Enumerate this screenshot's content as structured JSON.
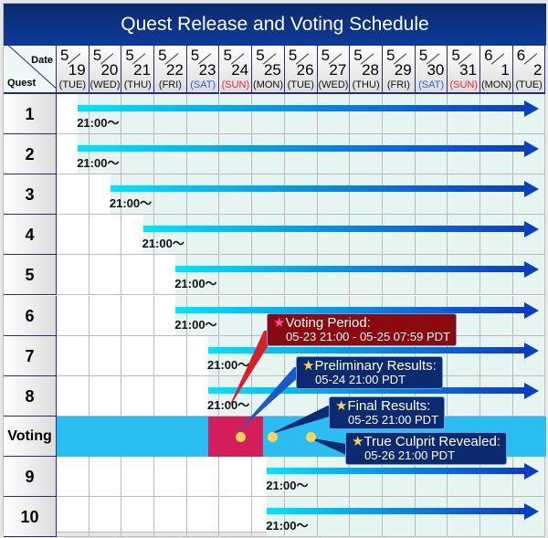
{
  "title": "Quest Release and Voting Schedule",
  "corner": {
    "date": "Date",
    "quest": "Quest"
  },
  "days": [
    {
      "m": "5",
      "d": "19",
      "w": "(TUE)",
      "c": "#111"
    },
    {
      "m": "5",
      "d": "20",
      "w": "(WED)",
      "c": "#111"
    },
    {
      "m": "5",
      "d": "21",
      "w": "(THU)",
      "c": "#111"
    },
    {
      "m": "5",
      "d": "22",
      "w": "(FRI)",
      "c": "#111"
    },
    {
      "m": "5",
      "d": "23",
      "w": "(SAT)",
      "c": "#2a5fd0"
    },
    {
      "m": "5",
      "d": "24",
      "w": "(SUN)",
      "c": "#e8283c"
    },
    {
      "m": "5",
      "d": "25",
      "w": "(MON)",
      "c": "#111"
    },
    {
      "m": "5",
      "d": "26",
      "w": "(TUE)",
      "c": "#111"
    },
    {
      "m": "5",
      "d": "27",
      "w": "(WED)",
      "c": "#111"
    },
    {
      "m": "5",
      "d": "28",
      "w": "(THU)",
      "c": "#111"
    },
    {
      "m": "5",
      "d": "29",
      "w": "(FRI)",
      "c": "#111"
    },
    {
      "m": "5",
      "d": "30",
      "w": "(SAT)",
      "c": "#2a5fd0"
    },
    {
      "m": "5",
      "d": "31",
      "w": "(SUN)",
      "c": "#e8283c"
    },
    {
      "m": "6",
      "d": "1",
      "w": "(MON)",
      "c": "#111"
    },
    {
      "m": "6",
      "d": "2",
      "w": "(TUE)",
      "c": "#111"
    }
  ],
  "rows": [
    {
      "label": "1",
      "start": 0.65,
      "time": "21:00～"
    },
    {
      "label": "2",
      "start": 0.65,
      "time": "21:00～"
    },
    {
      "label": "3",
      "start": 1.65,
      "time": "21:00～"
    },
    {
      "label": "4",
      "start": 2.65,
      "time": "21:00～"
    },
    {
      "label": "5",
      "start": 3.65,
      "time": "21:00～"
    },
    {
      "label": "6",
      "start": 3.65,
      "time": "21:00～"
    },
    {
      "label": "7",
      "start": 4.65,
      "time": "21:00～"
    },
    {
      "label": "8",
      "start": 4.65,
      "time": "21:00～"
    },
    {
      "label": "Voting",
      "voting": true
    },
    {
      "label": "9",
      "start": 6.45,
      "time": "21:00～"
    },
    {
      "label": "10",
      "start": 6.45,
      "time": "21:00～"
    }
  ],
  "callouts": {
    "voting": {
      "title": "Voting Period:",
      "time": "05-23 21:00 - 05-25 07:59 PDT"
    },
    "preliminary": {
      "title": "Preliminary Results:",
      "time": "05-24 21:00 PDT"
    },
    "final": {
      "title": "Final Results:",
      "time": "05-25 21:00 PDT"
    },
    "culprit": {
      "title": "True Culprit Revealed:",
      "time": "05-26 21:00 PDT"
    },
    "star": "★"
  },
  "colors": {
    "header": "#0a2a6e",
    "arrow_start": "#00e5ff",
    "arrow_end": "#0a3fc0",
    "voting_row": "#29bdf2",
    "voting_period": "#d21e5a",
    "voting_callout": "#8a0a10",
    "result_callout": "#0c2a70"
  }
}
